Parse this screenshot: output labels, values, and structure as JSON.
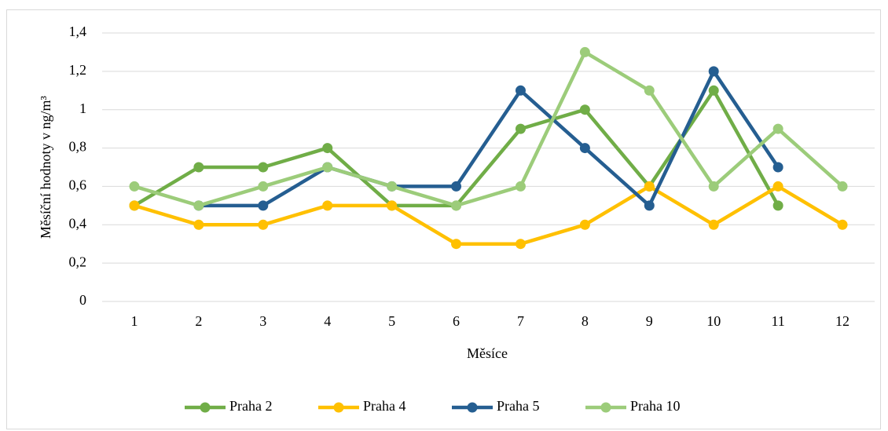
{
  "chart_data": {
    "type": "line",
    "x_label": "Měsíce",
    "y_label": "Měsíční hodnoty v ng/m³",
    "categories": [
      "1",
      "2",
      "3",
      "4",
      "5",
      "6",
      "7",
      "8",
      "9",
      "10",
      "11",
      "12"
    ],
    "series": [
      {
        "name": "Praha 2",
        "color": "#70ad47",
        "values": [
          0.5,
          0.7,
          0.7,
          0.8,
          0.5,
          0.5,
          0.9,
          1.0,
          0.6,
          1.1,
          0.5,
          null
        ]
      },
      {
        "name": "Praha 4",
        "color": "#ffc000",
        "values": [
          0.5,
          0.4,
          0.4,
          0.5,
          0.5,
          0.3,
          0.3,
          0.4,
          0.6,
          0.4,
          0.6,
          0.4
        ]
      },
      {
        "name": "Praha 5",
        "color": "#255e91",
        "values": [
          null,
          0.5,
          0.5,
          0.7,
          0.6,
          0.6,
          1.1,
          0.8,
          0.5,
          1.2,
          0.7,
          null
        ]
      },
      {
        "name": "Praha 10",
        "color": "#9ccc7a",
        "values": [
          0.6,
          0.5,
          0.6,
          0.7,
          0.6,
          0.5,
          0.6,
          1.3,
          1.1,
          0.6,
          0.9,
          0.6
        ]
      }
    ],
    "ylim": [
      0,
      1.4
    ],
    "yticks": [
      0,
      {
        "value": 0.2,
        "label": "0,2"
      },
      {
        "value": 0.4,
        "label": "0,4"
      },
      {
        "value": 0.6,
        "label": "0,6"
      },
      {
        "value": 0.8,
        "label": "0,8"
      },
      1,
      {
        "value": 1.2,
        "label": "1,2"
      },
      {
        "value": 1.4,
        "label": "1,4"
      }
    ],
    "grid": true,
    "legend": "bottom"
  }
}
